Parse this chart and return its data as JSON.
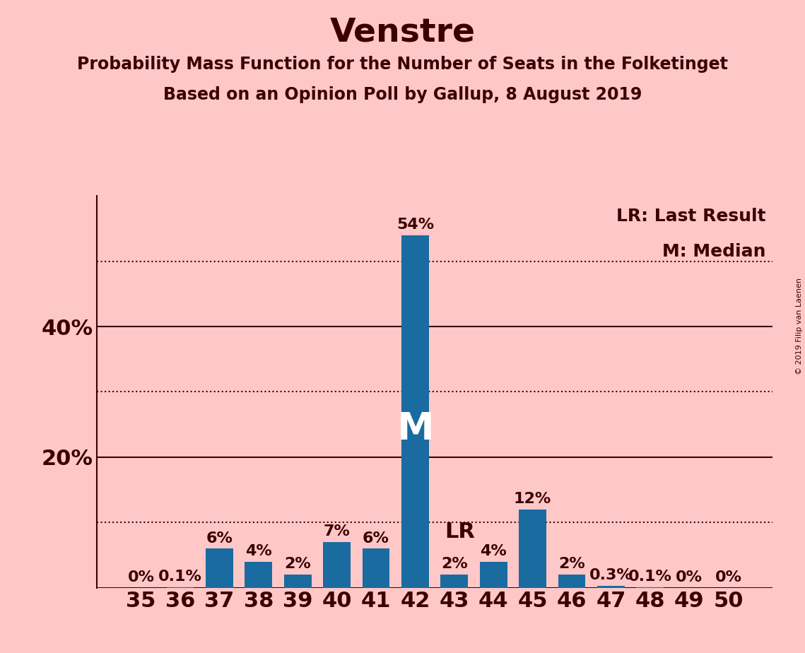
{
  "title": "Venstre",
  "subtitle1": "Probability Mass Function for the Number of Seats in the Folketinget",
  "subtitle2": "Based on an Opinion Poll by Gallup, 8 August 2019",
  "copyright": "© 2019 Filip van Laenen",
  "legend_lr": "LR: Last Result",
  "legend_m": "M: Median",
  "categories": [
    35,
    36,
    37,
    38,
    39,
    40,
    41,
    42,
    43,
    44,
    45,
    46,
    47,
    48,
    49,
    50
  ],
  "values": [
    0.0,
    0.1,
    6.0,
    4.0,
    2.0,
    7.0,
    6.0,
    54.0,
    2.0,
    4.0,
    12.0,
    2.0,
    0.3,
    0.1,
    0.0,
    0.0
  ],
  "labels": [
    "0%",
    "0.1%",
    "6%",
    "4%",
    "2%",
    "7%",
    "6%",
    "54%",
    "2%",
    "4%",
    "12%",
    "2%",
    "0.3%",
    "0.1%",
    "0%",
    "0%"
  ],
  "bar_color": "#1a6ba0",
  "background_color": "#ffc8c8",
  "text_color": "#3d0000",
  "median_seat": 42,
  "lr_seat": 43,
  "solid_yticks": [
    0,
    20,
    40
  ],
  "dotted_yticks": [
    10,
    30,
    50
  ],
  "ylim": [
    0,
    60
  ],
  "title_fontsize": 34,
  "subtitle_fontsize": 17,
  "tick_fontsize": 22,
  "label_fontsize": 16,
  "m_fontsize": 38,
  "lr_fontsize": 22,
  "legend_fontsize": 18,
  "copyright_fontsize": 8
}
